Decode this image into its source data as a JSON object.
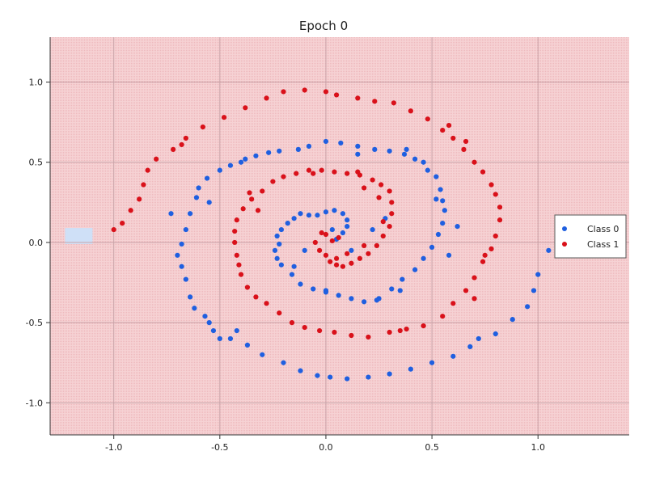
{
  "chart_data": {
    "type": "scatter",
    "title": "Epoch 0",
    "xlabel": "",
    "ylabel": "",
    "xlim": [
      -1.3,
      1.43
    ],
    "ylim": [
      -1.2,
      1.28
    ],
    "xticks": [
      -1.0,
      -0.5,
      0.0,
      0.5,
      1.0
    ],
    "xtick_labels": [
      "-1.0",
      "-0.5",
      "0.0",
      "0.5",
      "1.0"
    ],
    "yticks": [
      -1.0,
      -0.5,
      0.0,
      0.5,
      1.0
    ],
    "ytick_labels": [
      "-1.0",
      "-0.5",
      "0.0",
      "0.5",
      "1.0"
    ],
    "grid": true,
    "legend_position": "right",
    "background_region": {
      "color": "#f4c6c8",
      "predicted_class": "Class 1"
    },
    "small_region": {
      "color": "#cfe0f7",
      "predicted_class": "Class 0",
      "x": [
        -1.23,
        -1.1
      ],
      "y": [
        -0.01,
        0.09
      ]
    },
    "series": [
      {
        "name": "Class 0",
        "color": "#1f5fe0",
        "points": [
          [
            0.05,
            0.02
          ],
          [
            0.08,
            0.06
          ],
          [
            0.1,
            0.1
          ],
          [
            0.1,
            0.14
          ],
          [
            0.08,
            0.18
          ],
          [
            0.04,
            0.2
          ],
          [
            0.0,
            0.19
          ],
          [
            -0.04,
            0.17
          ],
          [
            -0.08,
            0.17
          ],
          [
            -0.12,
            0.18
          ],
          [
            -0.15,
            0.15
          ],
          [
            -0.18,
            0.12
          ],
          [
            -0.21,
            0.08
          ],
          [
            -0.23,
            0.04
          ],
          [
            -0.22,
            -0.01
          ],
          [
            -0.24,
            -0.05
          ],
          [
            -0.23,
            -0.1
          ],
          [
            -0.21,
            -0.14
          ],
          [
            -0.16,
            -0.2
          ],
          [
            -0.12,
            -0.26
          ],
          [
            -0.06,
            -0.29
          ],
          [
            0.0,
            -0.31
          ],
          [
            0.06,
            -0.33
          ],
          [
            0.12,
            -0.35
          ],
          [
            0.18,
            -0.37
          ],
          [
            0.24,
            -0.36
          ],
          [
            0.31,
            -0.29
          ],
          [
            0.36,
            -0.23
          ],
          [
            0.42,
            -0.17
          ],
          [
            0.46,
            -0.1
          ],
          [
            0.5,
            -0.03
          ],
          [
            0.53,
            0.05
          ],
          [
            0.55,
            0.12
          ],
          [
            0.56,
            0.2
          ],
          [
            0.55,
            0.26
          ],
          [
            0.54,
            0.33
          ],
          [
            0.52,
            0.41
          ],
          [
            0.48,
            0.45
          ],
          [
            0.46,
            0.5
          ],
          [
            0.37,
            0.55
          ],
          [
            0.3,
            0.57
          ],
          [
            0.23,
            0.58
          ],
          [
            0.15,
            0.6
          ],
          [
            0.07,
            0.62
          ],
          [
            0.0,
            0.63
          ],
          [
            -0.08,
            0.6
          ],
          [
            -0.13,
            0.58
          ],
          [
            -0.22,
            0.57
          ],
          [
            -0.27,
            0.56
          ],
          [
            -0.33,
            0.54
          ],
          [
            -0.38,
            0.52
          ],
          [
            -0.45,
            0.48
          ],
          [
            -0.5,
            0.45
          ],
          [
            -0.56,
            0.4
          ],
          [
            -0.6,
            0.34
          ],
          [
            -0.61,
            0.28
          ],
          [
            -0.64,
            0.18
          ],
          [
            -0.66,
            0.08
          ],
          [
            -0.68,
            -0.01
          ],
          [
            -0.7,
            -0.08
          ],
          [
            -0.68,
            -0.15
          ],
          [
            -0.66,
            -0.23
          ],
          [
            -0.64,
            -0.34
          ],
          [
            -0.62,
            -0.41
          ],
          [
            -0.57,
            -0.46
          ],
          [
            -0.55,
            -0.5
          ],
          [
            -0.53,
            -0.55
          ],
          [
            -0.5,
            -0.6
          ],
          [
            -0.45,
            -0.6
          ],
          [
            -0.37,
            -0.64
          ],
          [
            -0.3,
            -0.7
          ],
          [
            -0.2,
            -0.75
          ],
          [
            -0.12,
            -0.8
          ],
          [
            -0.04,
            -0.83
          ],
          [
            0.02,
            -0.84
          ],
          [
            0.1,
            -0.85
          ],
          [
            0.2,
            -0.84
          ],
          [
            0.3,
            -0.82
          ],
          [
            0.4,
            -0.79
          ],
          [
            0.5,
            -0.75
          ],
          [
            0.6,
            -0.71
          ],
          [
            0.68,
            -0.65
          ],
          [
            0.72,
            -0.6
          ],
          [
            0.8,
            -0.57
          ],
          [
            0.88,
            -0.48
          ],
          [
            0.95,
            -0.4
          ],
          [
            0.98,
            -0.3
          ],
          [
            1.0,
            -0.2
          ],
          [
            1.05,
            -0.05
          ],
          [
            0.42,
            0.52
          ],
          [
            -0.73,
            0.18
          ],
          [
            -0.55,
            0.25
          ],
          [
            0.03,
            0.08
          ],
          [
            0.12,
            -0.05
          ],
          [
            -0.1,
            -0.05
          ],
          [
            0.28,
            0.15
          ],
          [
            0.22,
            0.08
          ],
          [
            0.0,
            -0.3
          ],
          [
            -0.4,
            0.5
          ],
          [
            -0.15,
            -0.15
          ],
          [
            0.35,
            -0.3
          ],
          [
            0.15,
            0.55
          ],
          [
            0.25,
            -0.35
          ],
          [
            0.62,
            0.1
          ],
          [
            0.58,
            -0.08
          ],
          [
            -0.42,
            -0.55
          ],
          [
            0.38,
            0.58
          ],
          [
            0.52,
            0.27
          ]
        ]
      },
      {
        "name": "Class 1",
        "color": "#d9111a",
        "points": [
          [
            -0.05,
            0.0
          ],
          [
            -0.03,
            -0.05
          ],
          [
            0.0,
            -0.08
          ],
          [
            0.02,
            -0.12
          ],
          [
            0.05,
            -0.14
          ],
          [
            0.08,
            -0.15
          ],
          [
            0.12,
            -0.13
          ],
          [
            0.16,
            -0.1
          ],
          [
            0.2,
            -0.07
          ],
          [
            0.24,
            -0.02
          ],
          [
            0.27,
            0.04
          ],
          [
            0.3,
            0.1
          ],
          [
            0.31,
            0.18
          ],
          [
            0.31,
            0.25
          ],
          [
            0.3,
            0.32
          ],
          [
            0.26,
            0.36
          ],
          [
            0.22,
            0.39
          ],
          [
            0.16,
            0.42
          ],
          [
            0.1,
            0.43
          ],
          [
            0.04,
            0.44
          ],
          [
            -0.02,
            0.45
          ],
          [
            -0.08,
            0.45
          ],
          [
            -0.14,
            0.43
          ],
          [
            -0.2,
            0.41
          ],
          [
            -0.25,
            0.38
          ],
          [
            -0.3,
            0.32
          ],
          [
            -0.35,
            0.27
          ],
          [
            -0.39,
            0.21
          ],
          [
            -0.42,
            0.14
          ],
          [
            -0.43,
            0.07
          ],
          [
            -0.43,
            0.0
          ],
          [
            -0.42,
            -0.08
          ],
          [
            -0.41,
            -0.14
          ],
          [
            -0.4,
            -0.2
          ],
          [
            -0.37,
            -0.28
          ],
          [
            -0.33,
            -0.34
          ],
          [
            -0.28,
            -0.38
          ],
          [
            -0.22,
            -0.44
          ],
          [
            -0.16,
            -0.5
          ],
          [
            -0.1,
            -0.53
          ],
          [
            -0.03,
            -0.55
          ],
          [
            0.04,
            -0.56
          ],
          [
            0.12,
            -0.58
          ],
          [
            0.2,
            -0.59
          ],
          [
            0.3,
            -0.56
          ],
          [
            0.38,
            -0.54
          ],
          [
            0.46,
            -0.52
          ],
          [
            0.55,
            -0.46
          ],
          [
            0.6,
            -0.38
          ],
          [
            0.66,
            -0.3
          ],
          [
            0.7,
            -0.22
          ],
          [
            0.74,
            -0.12
          ],
          [
            0.78,
            -0.04
          ],
          [
            0.8,
            0.04
          ],
          [
            0.82,
            0.14
          ],
          [
            0.82,
            0.22
          ],
          [
            0.8,
            0.3
          ],
          [
            0.78,
            0.36
          ],
          [
            0.74,
            0.44
          ],
          [
            0.7,
            0.5
          ],
          [
            0.65,
            0.58
          ],
          [
            0.6,
            0.65
          ],
          [
            0.55,
            0.7
          ],
          [
            0.48,
            0.77
          ],
          [
            0.4,
            0.82
          ],
          [
            0.32,
            0.87
          ],
          [
            0.23,
            0.88
          ],
          [
            0.15,
            0.9
          ],
          [
            0.05,
            0.92
          ],
          [
            0.0,
            0.94
          ],
          [
            -0.1,
            0.95
          ],
          [
            -0.2,
            0.94
          ],
          [
            -0.28,
            0.9
          ],
          [
            -0.38,
            0.84
          ],
          [
            -0.48,
            0.78
          ],
          [
            -0.58,
            0.72
          ],
          [
            -0.66,
            0.65
          ],
          [
            -0.72,
            0.58
          ],
          [
            -0.8,
            0.52
          ],
          [
            -0.84,
            0.45
          ],
          [
            -0.86,
            0.36
          ],
          [
            -0.88,
            0.27
          ],
          [
            -0.92,
            0.2
          ],
          [
            -0.96,
            0.12
          ],
          [
            -1.0,
            0.08
          ],
          [
            0.0,
            0.05
          ],
          [
            0.03,
            0.01
          ],
          [
            0.06,
            0.03
          ],
          [
            0.1,
            -0.07
          ],
          [
            -0.02,
            0.06
          ],
          [
            0.18,
            -0.02
          ],
          [
            0.27,
            0.13
          ],
          [
            0.15,
            0.44
          ],
          [
            -0.32,
            0.2
          ],
          [
            0.7,
            -0.35
          ],
          [
            0.58,
            0.73
          ],
          [
            -0.68,
            0.61
          ],
          [
            0.05,
            -0.1
          ],
          [
            0.25,
            0.28
          ],
          [
            0.18,
            0.34
          ],
          [
            -0.06,
            0.43
          ],
          [
            0.35,
            -0.55
          ],
          [
            -0.36,
            0.31
          ],
          [
            0.75,
            -0.08
          ],
          [
            0.66,
            0.63
          ]
        ]
      }
    ]
  }
}
